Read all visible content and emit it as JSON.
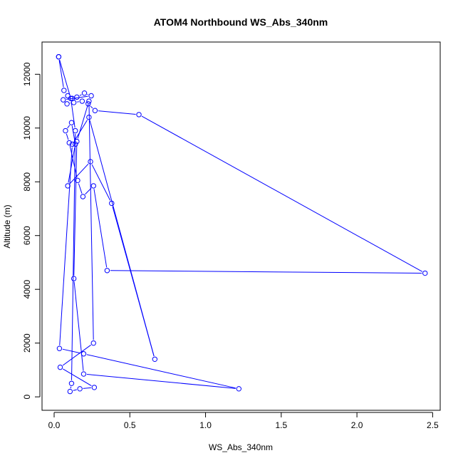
{
  "chart_data": {
    "type": "line",
    "title": "ATOM4 Northbound WS_Abs_340nm",
    "xlabel": "WS_Abs_340nm",
    "ylabel": "Altitude (m)",
    "xlim": [
      -0.08,
      2.55
    ],
    "ylim": [
      -500,
      13200
    ],
    "xticks": [
      0.0,
      0.5,
      1.0,
      1.5,
      2.0,
      2.5
    ],
    "xtick_labels": [
      "0.0",
      "0.5",
      "1.0",
      "1.5",
      "2.0",
      "2.5"
    ],
    "yticks": [
      0,
      2000,
      4000,
      6000,
      8000,
      10000,
      12000
    ],
    "ytick_labels": [
      "0",
      "2000",
      "4000",
      "6000",
      "8000",
      "10000",
      "12000"
    ],
    "series": [
      {
        "color": "#0000ff",
        "marker": "open-circle",
        "x": [
          0.03,
          0.065,
          0.09,
          0.12,
          0.15,
          0.2,
          0.245,
          0.06,
          0.085,
          0.13,
          0.185,
          0.225,
          0.27,
          0.56,
          2.45,
          0.35,
          0.26,
          0.19,
          0.155,
          0.1,
          0.075,
          0.115,
          0.14,
          0.09,
          0.24,
          0.38,
          0.665,
          0.23,
          0.12,
          0.035,
          0.195,
          1.22,
          0.195,
          0.13,
          0.15,
          0.23,
          0.26,
          0.04,
          0.265,
          0.17,
          0.105,
          0.115,
          0.14,
          0.11,
          0.03
        ],
        "y": [
          12650,
          11400,
          11200,
          11100,
          11150,
          11300,
          11200,
          11050,
          10900,
          10950,
          11000,
          10900,
          10650,
          10500,
          4600,
          4700,
          7850,
          7450,
          8050,
          9450,
          9900,
          10200,
          9400,
          7850,
          8750,
          7200,
          1400,
          10400,
          9400,
          1800,
          1600,
          300,
          850,
          4400,
          9500,
          11000,
          2000,
          1100,
          350,
          300,
          200,
          500,
          9900,
          11100,
          12650
        ]
      }
    ]
  }
}
